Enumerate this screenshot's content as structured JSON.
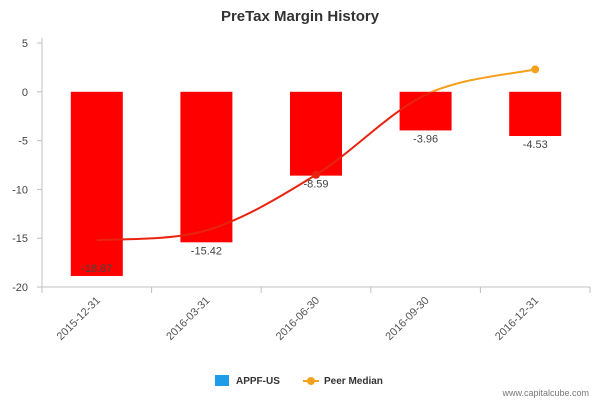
{
  "chart_data": {
    "type": "bar",
    "title": "PreTax Margin History",
    "categories": [
      "2015-12-31",
      "2016-03-31",
      "2016-06-30",
      "2016-09-30",
      "2016-12-31"
    ],
    "series": [
      {
        "name": "APPF-US",
        "type": "bar",
        "values": [
          -18.87,
          -15.42,
          -8.59,
          -3.96,
          -4.53
        ],
        "color": "#ff0000"
      },
      {
        "name": "Peer Median",
        "type": "line",
        "values": [
          -15.2,
          -14.2,
          -8.5,
          -0.3,
          2.3
        ],
        "color": "#f6a11e",
        "below_zero_color": "#e8230f"
      }
    ],
    "data_labels": [
      "-18.87",
      "-15.42",
      "-8.59",
      "-3.96",
      "-4.53"
    ],
    "ylim": [
      -20,
      5
    ],
    "yticks": [
      5,
      0,
      -5,
      -10,
      -15,
      -20
    ],
    "xlabel": "",
    "ylabel": "",
    "grid": false,
    "legend": {
      "placement": "bottom-center",
      "items": [
        {
          "label": "APPF-US",
          "color": "#1e9be9",
          "marker": "square"
        },
        {
          "label": "Peer Median",
          "color": "#f6a11e",
          "marker": "line-dot"
        }
      ]
    },
    "credit": "www.capitalcube.com"
  }
}
